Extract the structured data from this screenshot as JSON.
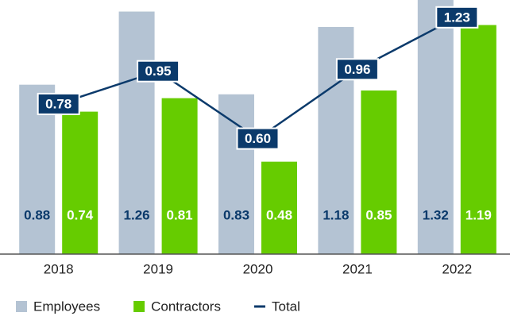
{
  "chart_data": {
    "type": "bar",
    "categories": [
      "2018",
      "2019",
      "2020",
      "2021",
      "2022"
    ],
    "series": [
      {
        "name": "Employees",
        "color": "#b4c3d3",
        "values": [
          0.88,
          1.26,
          0.83,
          1.18,
          1.32
        ]
      },
      {
        "name": "Contractors",
        "color": "#66cc00",
        "values": [
          0.74,
          0.81,
          0.48,
          0.85,
          1.19
        ]
      },
      {
        "name": "Total",
        "type": "line",
        "color": "#0b3a6b",
        "values": [
          0.78,
          0.95,
          0.6,
          0.96,
          1.23
        ],
        "value_labels": [
          "0.78",
          "0.95",
          "0.60",
          "0.96",
          "1.23"
        ]
      }
    ],
    "ylim": [
      0,
      1.32
    ],
    "legend": "bottom-left"
  }
}
